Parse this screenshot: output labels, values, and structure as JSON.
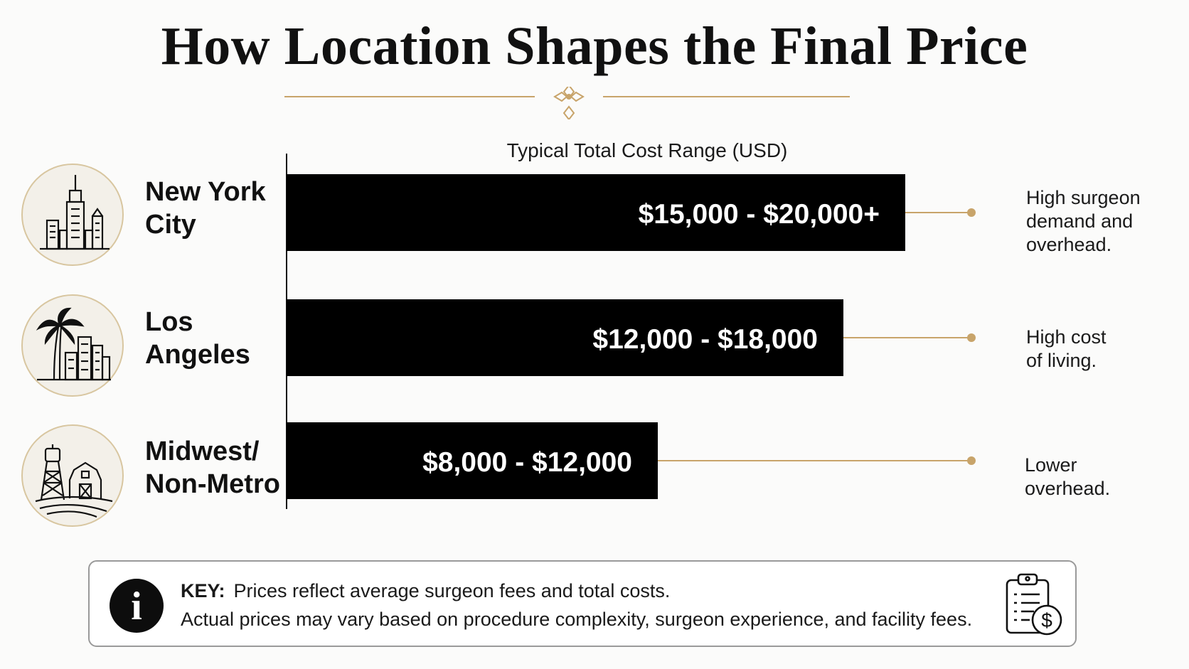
{
  "title": "How Location Shapes the Final Price",
  "colors": {
    "accent_gold": "#c8a46a",
    "bar": "#000000",
    "text": "#111111"
  },
  "chart_data": {
    "type": "bar",
    "orientation": "horizontal",
    "xlabel": "Typical Total Cost Range (USD)",
    "categories": [
      "New York City",
      "Los Angeles",
      "Midwest/ Non-Metro"
    ],
    "ranges": [
      [
        15000,
        20000
      ],
      [
        12000,
        18000
      ],
      [
        8000,
        12000
      ]
    ],
    "bar_labels": [
      "$15,000 - $20,000+",
      "$12,000 - $18,000",
      "$8,000 - $12,000"
    ],
    "annotations": [
      "High surgeon demand and overhead.",
      "High cost of living.",
      "Lower overhead."
    ],
    "icons": [
      "skyline-icon",
      "palm-city-icon",
      "farm-icon"
    ]
  },
  "locations": [
    {
      "line1": "New York",
      "line2": "City"
    },
    {
      "line1": "Los",
      "line2": "Angeles"
    },
    {
      "line1": "Midwest/",
      "line2": "Non-Metro"
    }
  ],
  "notes": [
    {
      "line1": "High surgeon",
      "line2": "demand and",
      "line3": "overhead."
    },
    {
      "line1": "High cost",
      "line2": "of living."
    },
    {
      "line1": "Lower",
      "line2": "overhead."
    }
  ],
  "key": {
    "label": "KEY:",
    "line1": "Prices reflect average surgeon fees and total costs.",
    "line2": "Actual prices may vary based on procedure complexity, surgeon experience, and facility fees.",
    "info_icon": "i"
  }
}
